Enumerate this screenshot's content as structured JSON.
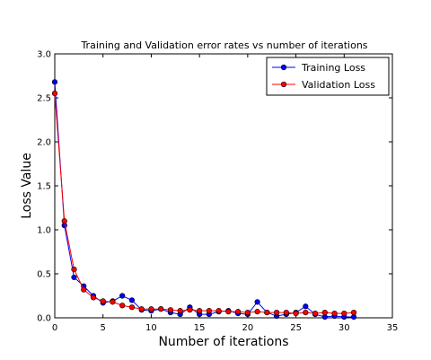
{
  "chart_data": {
    "type": "line",
    "title": "Training and Validation error rates vs number of iterations",
    "xlabel": "Number of iterations",
    "ylabel": "Loss Value",
    "xlim": [
      0,
      35
    ],
    "ylim": [
      0.0,
      3.0
    ],
    "xticks": [
      0,
      5,
      10,
      15,
      20,
      25,
      30,
      35
    ],
    "yticks": [
      0.0,
      0.5,
      1.0,
      1.5,
      2.0,
      2.5,
      3.0
    ],
    "xtick_labels": [
      "0",
      "5",
      "10",
      "15",
      "20",
      "25",
      "30",
      "35"
    ],
    "ytick_labels": [
      "0.0",
      "0.5",
      "1.0",
      "1.5",
      "2.0",
      "2.5",
      "3.0"
    ],
    "grid": false,
    "legend_position": "top-right",
    "x": [
      0,
      1,
      2,
      3,
      4,
      5,
      6,
      7,
      8,
      9,
      10,
      11,
      12,
      13,
      14,
      15,
      16,
      17,
      18,
      19,
      20,
      21,
      22,
      23,
      24,
      25,
      26,
      27,
      28,
      29,
      30,
      31
    ],
    "series": [
      {
        "name": "Training Loss",
        "color": "#0000ff",
        "values": [
          2.68,
          1.05,
          0.46,
          0.36,
          0.25,
          0.17,
          0.19,
          0.25,
          0.2,
          0.09,
          0.08,
          0.1,
          0.06,
          0.04,
          0.12,
          0.04,
          0.04,
          0.07,
          0.08,
          0.05,
          0.04,
          0.18,
          0.06,
          0.02,
          0.04,
          0.06,
          0.13,
          0.04,
          0.01,
          0.02,
          0.01,
          0.01
        ]
      },
      {
        "name": "Validation Loss",
        "color": "#ff0000",
        "values": [
          2.55,
          1.1,
          0.55,
          0.32,
          0.23,
          0.19,
          0.18,
          0.14,
          0.12,
          0.1,
          0.1,
          0.1,
          0.09,
          0.08,
          0.09,
          0.08,
          0.08,
          0.08,
          0.07,
          0.07,
          0.06,
          0.07,
          0.06,
          0.06,
          0.06,
          0.05,
          0.06,
          0.05,
          0.06,
          0.05,
          0.05,
          0.06
        ]
      }
    ]
  }
}
